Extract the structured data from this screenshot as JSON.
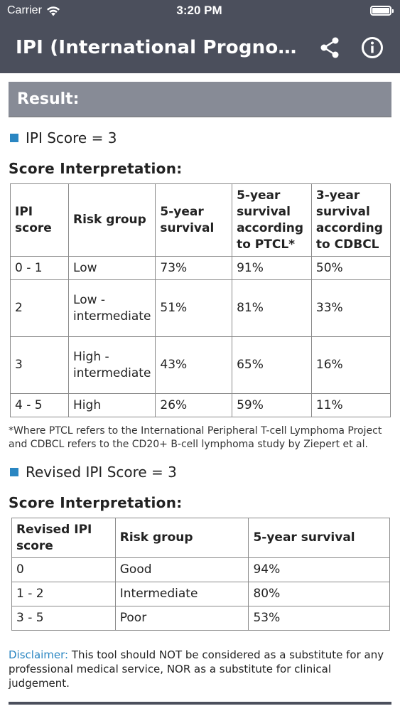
{
  "status_bar": {
    "carrier": "Carrier",
    "time": "3:20 PM"
  },
  "nav": {
    "title": "IPI (International Prognostic Index)",
    "share_icon": "share-icon",
    "info_icon": "info-icon"
  },
  "result": {
    "heading": "Result:"
  },
  "ipi": {
    "score_text": "IPI Score = 3",
    "interpretation_title": "Score Interpretation:",
    "headers": [
      "IPI score",
      "Risk group",
      "5-year survival",
      "5-year survival according to PTCL*",
      "3-year survival according to CDBCL"
    ],
    "rows": [
      [
        "0 - 1",
        "Low",
        "73%",
        "91%",
        "50%"
      ],
      [
        "2",
        "Low - intermediate",
        "51%",
        "81%",
        "33%"
      ],
      [
        "3",
        "High - intermediate",
        "43%",
        "65%",
        "16%"
      ],
      [
        "4 - 5",
        "High",
        "26%",
        "59%",
        "11%"
      ]
    ],
    "footnote": "*Where PTCL refers to the International Peripheral T-cell Lymphoma Project and CDBCL refers to the CD20+ B-cell lymphoma study by Ziepert et al."
  },
  "revised": {
    "score_text": "Revised IPI Score = 3",
    "interpretation_title": "Score Interpretation:",
    "headers": [
      "Revised IPI score",
      "Risk group",
      "5-year survival"
    ],
    "rows": [
      [
        "0",
        "Good",
        "94%"
      ],
      [
        "1 - 2",
        "Intermediate",
        "80%"
      ],
      [
        "3 - 5",
        "Poor",
        "53%"
      ]
    ]
  },
  "disclaimer": {
    "label": "Disclaimer:",
    "text": " This tool should NOT be considered as a substitute for any professional medical service, NOR as a substitute for clinical judgement."
  },
  "colors": {
    "header_bg": "#4b4f5c",
    "banner_bg": "#878b96",
    "accent": "#2a86c2"
  }
}
